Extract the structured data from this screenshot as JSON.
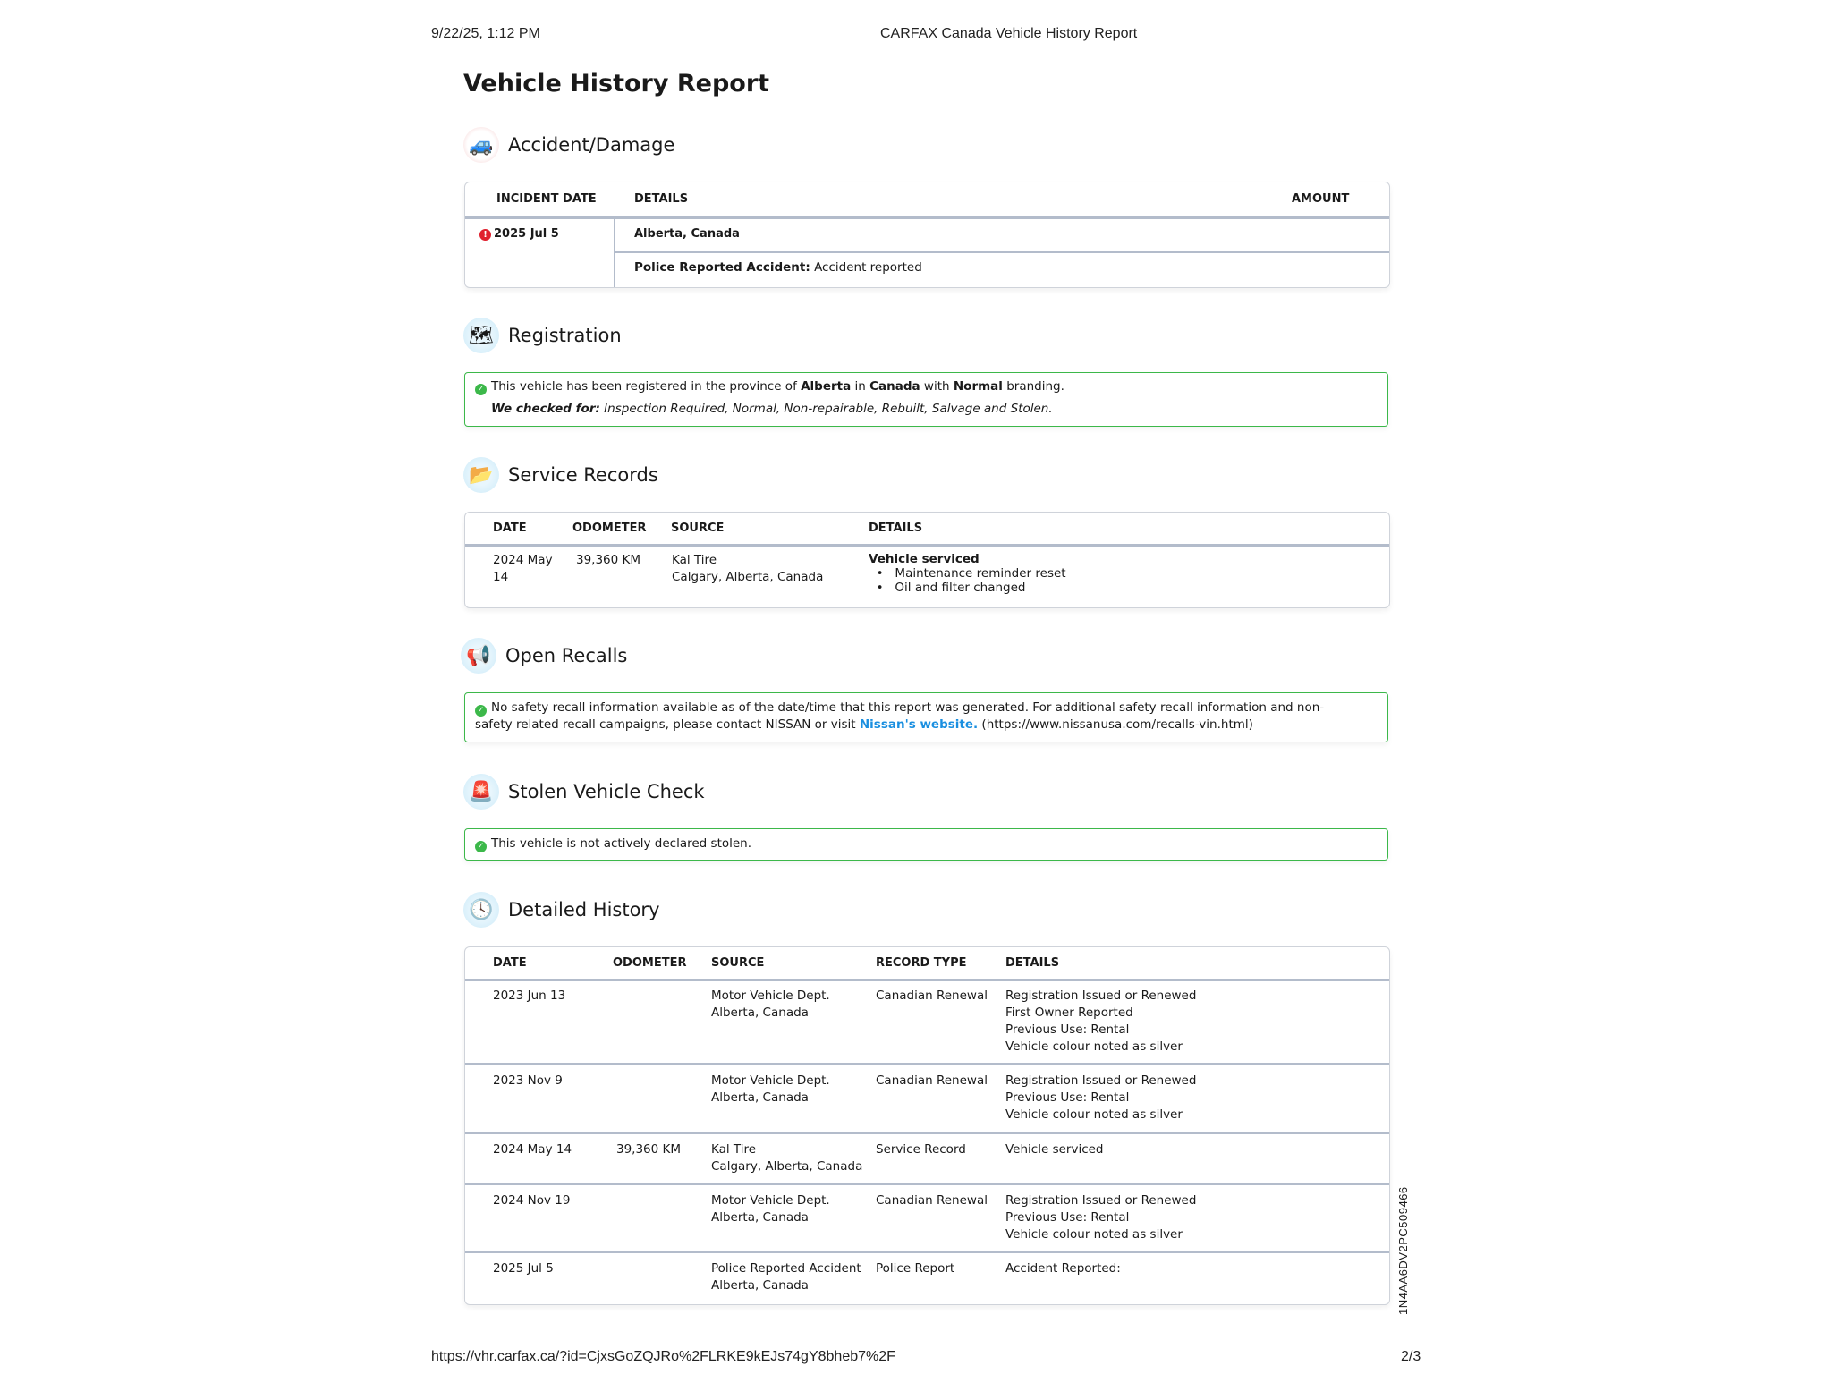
{
  "print_header": {
    "datetime": "9/22/25, 1:12 PM",
    "title": "CARFAX Canada Vehicle History Report"
  },
  "page_title": "Vehicle History Report",
  "accident": {
    "heading": "Accident/Damage",
    "icon": "tow-truck-icon",
    "columns": [
      "INCIDENT DATE",
      "DETAILS",
      "AMOUNT"
    ],
    "row": {
      "date": "2025 Jul 5",
      "location": "Alberta, Canada",
      "label": "Police Reported Accident:",
      "value": "Accident reported"
    }
  },
  "registration": {
    "heading": "Registration",
    "icon": "map-icon",
    "line1": {
      "a": "This vehicle has been registered in the province of ",
      "province": "Alberta",
      "b": " in ",
      "country": "Canada",
      "c": " with ",
      "brand": "Normal",
      "d": " branding."
    },
    "checked_label": "We checked for:",
    "checked_value": " Inspection Required, Normal, Non-repairable, Rebuilt, Salvage and Stolen."
  },
  "service": {
    "heading": "Service Records",
    "icon": "folder-icon",
    "columns": [
      "DATE",
      "ODOMETER",
      "SOURCE",
      "DETAILS"
    ],
    "row": {
      "date1": "2024 May",
      "date2": "14",
      "odometer": "39,360 KM",
      "source1": "Kal Tire",
      "source2": "Calgary, Alberta, Canada",
      "title": "Vehicle serviced",
      "items": [
        "Maintenance reminder reset",
        "Oil and filter changed"
      ]
    }
  },
  "recalls": {
    "heading": "Open Recalls",
    "icon": "megaphone-icon",
    "text1": "No safety recall information available as of the date/time that this report was generated. For additional safety recall information and non-safety related recall campaigns, please contact NISSAN or visit ",
    "link": "Nissan's website.",
    "text2": " (https://www.nissanusa.com/recalls-vin.html)"
  },
  "stolen": {
    "heading": "Stolen Vehicle Check",
    "icon": "siren-icon",
    "text": "This vehicle is not actively declared stolen."
  },
  "history": {
    "heading": "Detailed History",
    "icon": "clock-icon",
    "columns": [
      "DATE",
      "ODOMETER",
      "SOURCE",
      "RECORD TYPE",
      "DETAILS"
    ],
    "rows": [
      {
        "date": "2023 Jun 13",
        "odometer": "",
        "source": [
          "Motor Vehicle Dept.",
          "Alberta, Canada"
        ],
        "type": "Canadian Renewal",
        "details": [
          "Registration Issued or Renewed",
          "First Owner Reported",
          "Previous Use: Rental",
          "Vehicle colour noted as silver"
        ]
      },
      {
        "date": "2023 Nov 9",
        "odometer": "",
        "source": [
          "Motor Vehicle Dept.",
          "Alberta, Canada"
        ],
        "type": "Canadian Renewal",
        "details": [
          "Registration Issued or Renewed",
          "Previous Use: Rental",
          "Vehicle colour noted as silver"
        ]
      },
      {
        "date": "2024 May 14",
        "odometer": "39,360 KM",
        "source": [
          "Kal Tire",
          "Calgary, Alberta, Canada"
        ],
        "type": "Service Record",
        "details": [
          "Vehicle serviced"
        ]
      },
      {
        "date": "2024 Nov 19",
        "odometer": "",
        "source": [
          "Motor Vehicle Dept.",
          "Alberta, Canada"
        ],
        "type": "Canadian Renewal",
        "details": [
          "Registration Issued or Renewed",
          "Previous Use: Rental",
          "Vehicle colour noted as silver"
        ]
      },
      {
        "date": "2025 Jul 5",
        "odometer": "",
        "source": [
          "Police Reported Accident",
          "Alberta, Canada"
        ],
        "type": "Police Report",
        "details": [
          "Accident Reported:"
        ]
      }
    ]
  },
  "vin": "1N4AA6DV2PC509466",
  "print_footer": {
    "url": "https://vhr.carfax.ca/?id=CjxsGoZQJRo%2FLRKE9kEJs74gY8bheb7%2F",
    "page": "2/3"
  },
  "colors": {
    "success": "#3cb84a",
    "alert": "#e0202e",
    "link": "#1a8fe0",
    "divider": "#b3bccb"
  }
}
